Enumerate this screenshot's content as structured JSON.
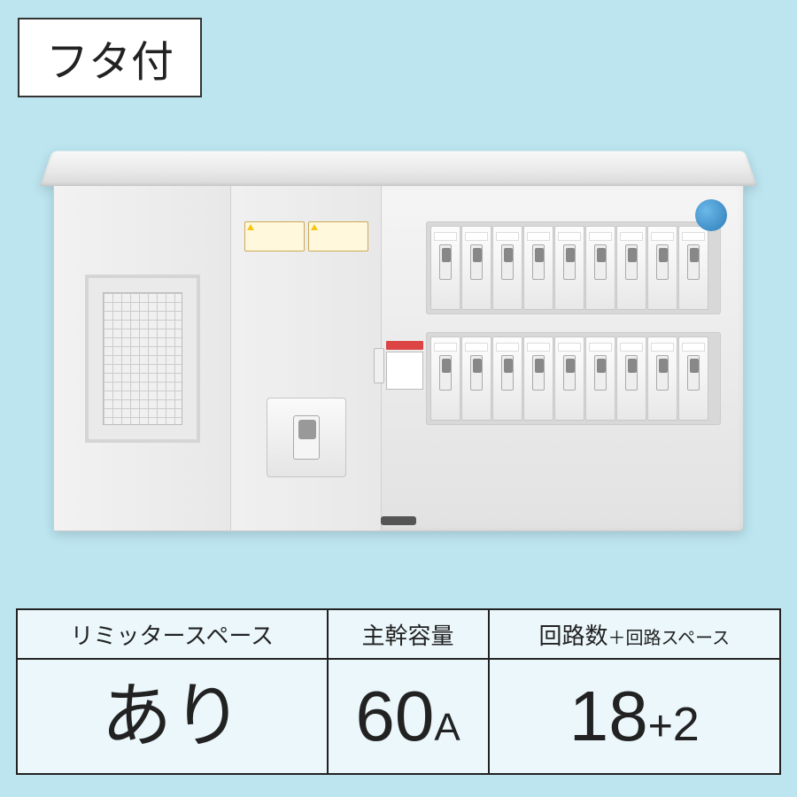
{
  "title_tag": "フタ付",
  "spec": {
    "columns": [
      {
        "header": "リミッタースペース",
        "value_main": "あり",
        "value_unit": "",
        "value_extra": ""
      },
      {
        "header": "主幹容量",
        "value_main": "60",
        "value_unit": "A",
        "value_extra": ""
      },
      {
        "header_main": "回路数",
        "header_plus": "＋",
        "header_sub": "回路スペース",
        "value_main": "18",
        "value_plus": "+",
        "value_extra": "2"
      }
    ]
  },
  "panel": {
    "breaker_rows": 2,
    "breakers_per_row": 9,
    "colors": {
      "page_bg": "#bce5f0",
      "panel_bg_top": "#f5f5f5",
      "panel_bg_bottom": "#e2e2e2",
      "border": "#222222",
      "badge": "#2d7db8",
      "warn_bg": "#fff8dc",
      "warn_border": "#ccaa55"
    }
  }
}
